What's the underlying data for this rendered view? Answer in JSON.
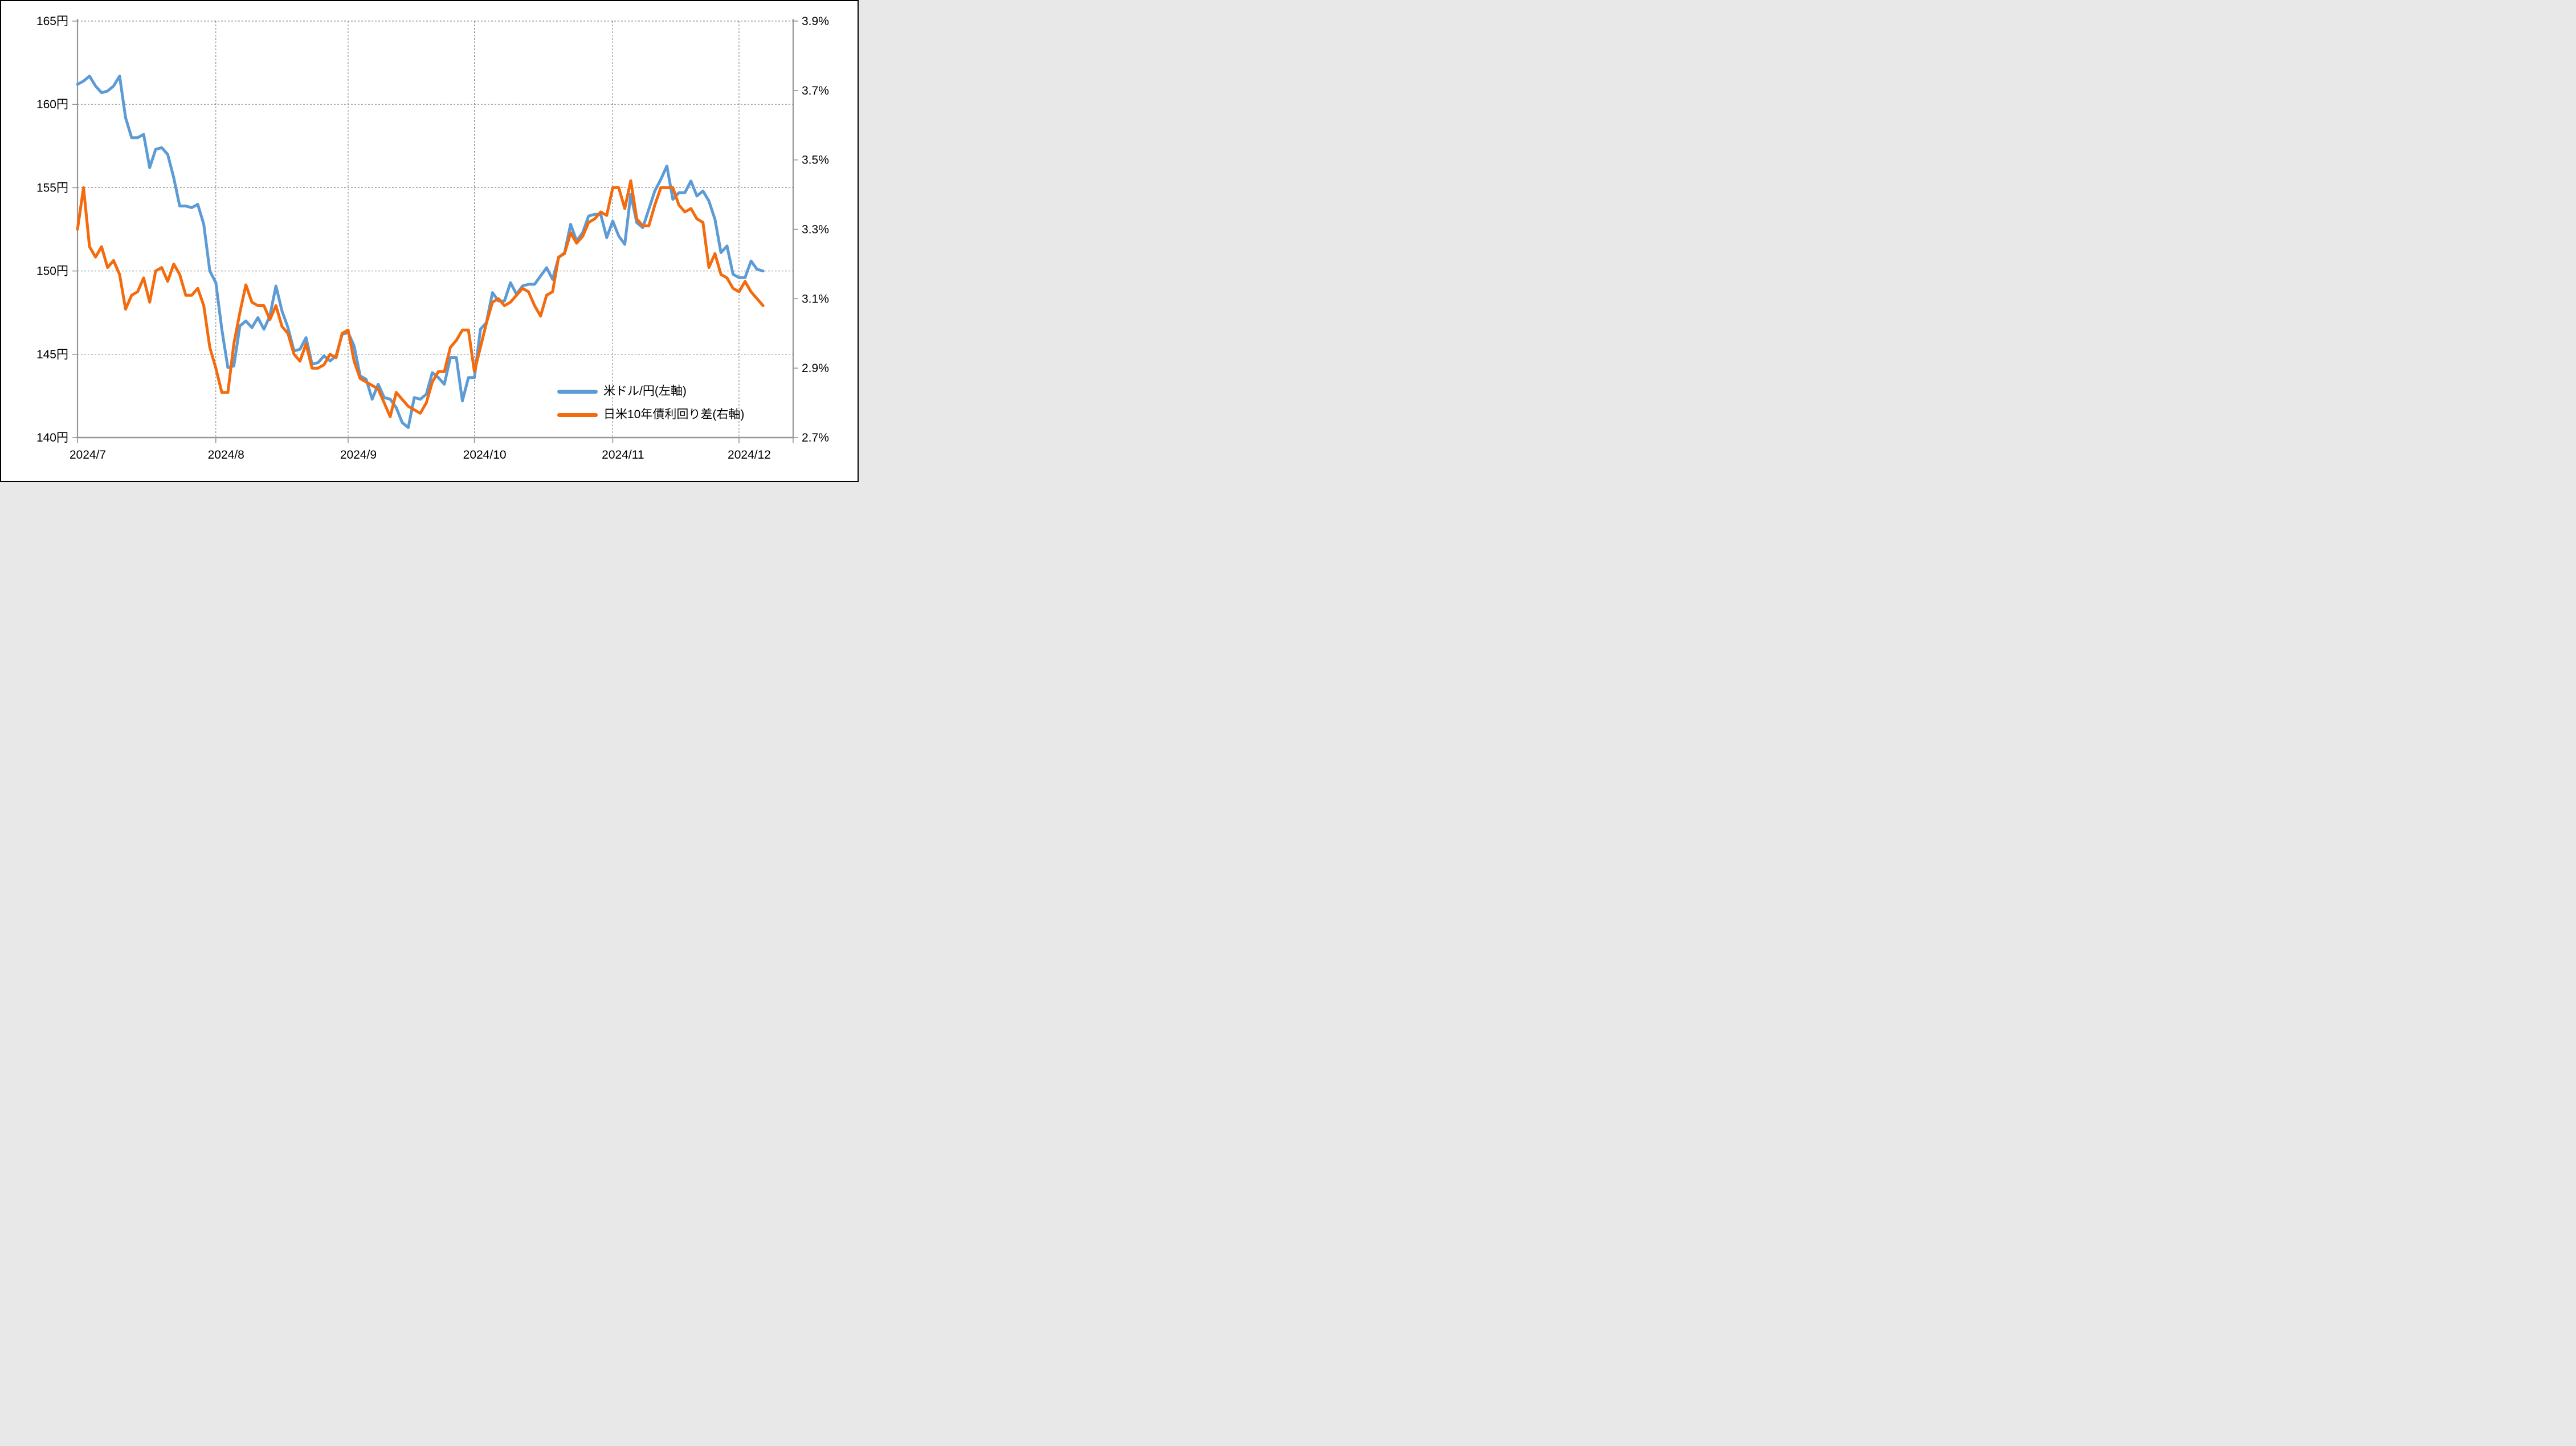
{
  "chart_data": {
    "type": "line",
    "x_axis": {
      "tick_labels": [
        "2024/7",
        "2024/8",
        "2024/9",
        "2024/10",
        "2024/11",
        "2024/12"
      ],
      "tick_day_index": [
        0,
        23,
        45,
        66,
        89,
        110
      ],
      "day_span": 119,
      "gridlines": "dashed-vertical-at-month-start"
    },
    "y_left": {
      "unit": "円",
      "min": 140,
      "max": 165,
      "tick_values": [
        165,
        160,
        155,
        150,
        145,
        140
      ],
      "tick_labels": [
        "165円",
        "160円",
        "155円",
        "150円",
        "145円",
        "140円"
      ],
      "gridlines": "dashed-horizontal"
    },
    "y_right": {
      "unit": "%",
      "min": 2.7,
      "max": 3.9,
      "tick_values": [
        3.9,
        3.7,
        3.5,
        3.3,
        3.1,
        2.9,
        2.7
      ],
      "tick_labels": [
        "3.9%",
        "3.7%",
        "3.5%",
        "3.3%",
        "3.1%",
        "2.9%",
        "2.7%"
      ]
    },
    "legend_position": "inside-bottom-right",
    "series": [
      {
        "name": "米ドル/円(左軸)",
        "axis": "left",
        "color": "#5C9BD5",
        "values": [
          161.2,
          161.4,
          161.7,
          161.1,
          160.7,
          160.8,
          161.1,
          161.7,
          159.2,
          158.0,
          158.0,
          158.2,
          156.2,
          157.3,
          157.4,
          157.0,
          155.6,
          153.9,
          153.9,
          153.8,
          154.0,
          152.8,
          150.0,
          149.3,
          146.5,
          144.2,
          144.3,
          146.7,
          147.0,
          146.6,
          147.2,
          146.5,
          147.3,
          149.1,
          147.6,
          146.6,
          145.2,
          145.3,
          146.0,
          144.4,
          144.5,
          144.9,
          144.6,
          144.9,
          146.2,
          146.3,
          145.5,
          143.7,
          143.5,
          142.3,
          143.2,
          142.4,
          142.3,
          141.8,
          140.9,
          140.6,
          142.4,
          142.3,
          142.6,
          143.9,
          143.6,
          143.2,
          144.8,
          144.8,
          142.2,
          143.6,
          143.6,
          146.5,
          146.9,
          148.7,
          148.2,
          148.2,
          149.3,
          148.6,
          149.1,
          149.2,
          149.2,
          149.7,
          150.2,
          149.5,
          150.8,
          151.1,
          152.8,
          151.8,
          152.3,
          153.3,
          153.4,
          153.4,
          152.0,
          153.0,
          152.1,
          151.6,
          154.6,
          152.9,
          152.6,
          153.7,
          154.8,
          155.5,
          156.3,
          154.3,
          154.7,
          154.7,
          155.4,
          154.5,
          154.8,
          154.2,
          153.1,
          151.1,
          151.5,
          149.8,
          149.6,
          149.6,
          150.6,
          150.1,
          150.0
        ]
      },
      {
        "name": "日米10年債利回り差(右軸)",
        "axis": "right",
        "color": "#F46A0C",
        "values": [
          3.3,
          3.42,
          3.25,
          3.22,
          3.25,
          3.19,
          3.21,
          3.17,
          3.07,
          3.11,
          3.12,
          3.16,
          3.09,
          3.18,
          3.19,
          3.15,
          3.2,
          3.17,
          3.11,
          3.11,
          3.13,
          3.08,
          2.96,
          2.9,
          2.83,
          2.83,
          2.97,
          3.06,
          3.14,
          3.09,
          3.08,
          3.08,
          3.04,
          3.08,
          3.02,
          3.0,
          2.94,
          2.92,
          2.97,
          2.9,
          2.9,
          2.91,
          2.94,
          2.93,
          3.0,
          3.01,
          2.92,
          2.87,
          2.86,
          2.85,
          2.84,
          2.8,
          2.76,
          2.83,
          2.81,
          2.79,
          2.78,
          2.77,
          2.8,
          2.86,
          2.89,
          2.89,
          2.96,
          2.98,
          3.01,
          3.01,
          2.89,
          2.96,
          3.03,
          3.09,
          3.1,
          3.08,
          3.09,
          3.11,
          3.13,
          3.12,
          3.08,
          3.05,
          3.11,
          3.12,
          3.22,
          3.23,
          3.29,
          3.26,
          3.28,
          3.32,
          3.33,
          3.35,
          3.34,
          3.42,
          3.42,
          3.36,
          3.44,
          3.33,
          3.31,
          3.31,
          3.37,
          3.42,
          3.42,
          3.42,
          3.37,
          3.35,
          3.36,
          3.33,
          3.32,
          3.19,
          3.23,
          3.17,
          3.16,
          3.13,
          3.12,
          3.15,
          3.12,
          3.1,
          3.08
        ]
      }
    ],
    "colors": {
      "background": "#ffffff",
      "frame_border": "#000000",
      "axis_line": "#969696",
      "gridline": "#8c8c8c",
      "text": "#000000"
    }
  }
}
